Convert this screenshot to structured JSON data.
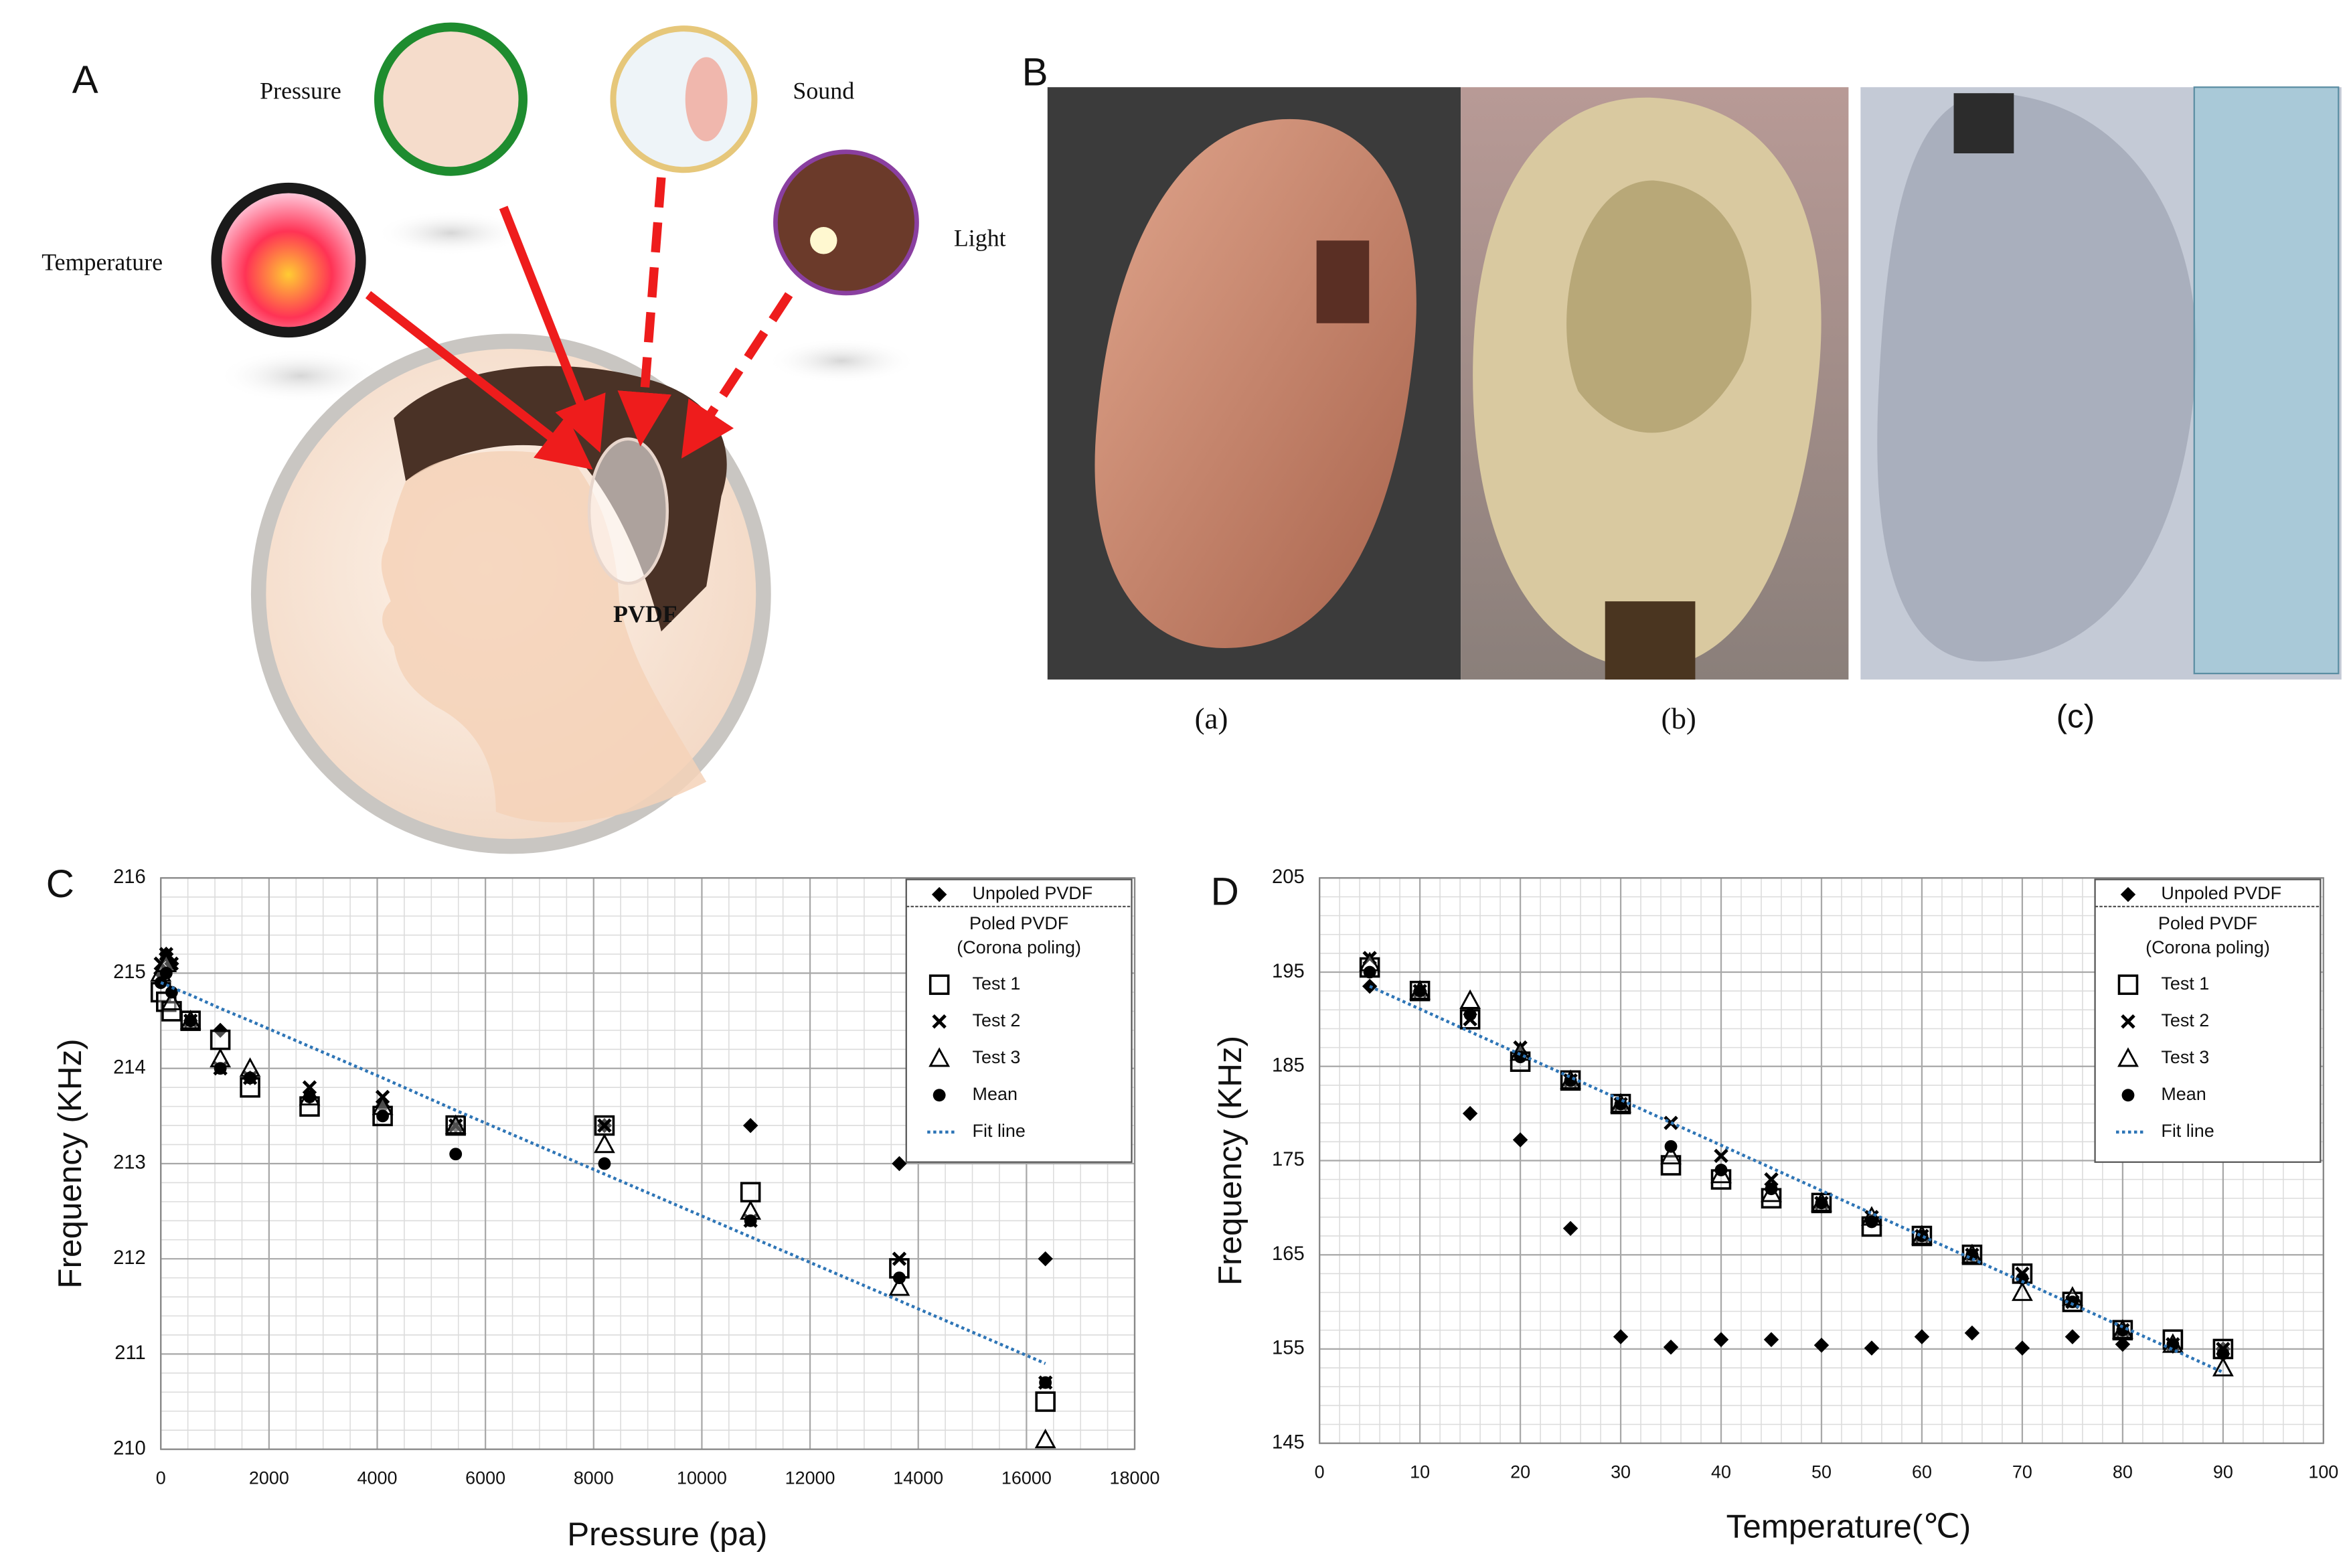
{
  "figure": {
    "panel_a": {
      "label": "A",
      "pressure": "Pressure",
      "sound": "Sound",
      "temperature": "Temperature",
      "light": "Light",
      "pvdf": "PVDF"
    },
    "panel_b": {
      "label": "B",
      "captions": [
        "(a)",
        "(b)",
        "(c)"
      ]
    }
  },
  "chart_data": [
    {
      "panel_label": "C",
      "type": "scatter",
      "x_label": "Pressure (pa)",
      "y_label": "Frequency (KHz)",
      "x": [
        0,
        100,
        200,
        550,
        1100,
        1650,
        2750,
        4100,
        5450,
        8200,
        10900,
        13650,
        16350
      ],
      "xlim": [
        0,
        18000
      ],
      "xticks": [
        0,
        2000,
        4000,
        6000,
        8000,
        10000,
        12000,
        14000,
        16000,
        18000
      ],
      "ylim": [
        210,
        216
      ],
      "yticks": [
        210,
        211,
        212,
        213,
        214,
        215,
        216
      ],
      "grid": true,
      "minor_divisions": {
        "x": 4,
        "y": 5
      },
      "legend_position": "upper right",
      "legend_group_title": [
        "Poled PVDF",
        "(Corona poling)"
      ],
      "series": [
        {
          "name": "Unpoled PVDF",
          "marker": "diamond",
          "color": "#000000",
          "values": [
            215.0,
            215.2,
            215.1,
            214.5,
            214.4,
            213.9,
            213.7,
            213.6,
            213.4,
            213.4,
            213.4,
            213.0,
            212.0
          ]
        },
        {
          "name": "Test 1",
          "marker": "square",
          "color": "#000000",
          "values": [
            214.8,
            214.7,
            214.6,
            214.5,
            214.3,
            213.8,
            213.6,
            213.5,
            213.4,
            213.4,
            212.7,
            211.9,
            210.5
          ]
        },
        {
          "name": "Test 2",
          "marker": "x",
          "color": "#000000",
          "values": [
            215.1,
            215.2,
            215.1,
            214.5,
            214.0,
            213.9,
            213.8,
            213.7,
            213.4,
            213.4,
            212.4,
            212.0,
            210.7
          ]
        },
        {
          "name": "Test 3",
          "marker": "triangle",
          "color": "#000000",
          "values": [
            215.0,
            215.1,
            214.7,
            214.5,
            214.1,
            214.0,
            213.7,
            213.6,
            213.4,
            213.2,
            212.5,
            211.7,
            210.1
          ]
        },
        {
          "name": "Mean",
          "marker": "circle",
          "color": "#000000",
          "values": [
            214.9,
            215.0,
            214.8,
            214.5,
            214.0,
            213.9,
            213.7,
            213.5,
            213.1,
            213.0,
            212.4,
            211.8,
            210.7
          ]
        },
        {
          "name": "Fit line",
          "marker": "none",
          "line_style": "dotted",
          "color": "#2e75b6",
          "values": [
            214.9,
            214.88,
            214.85,
            214.77,
            214.63,
            214.5,
            214.23,
            213.9,
            213.56,
            212.89,
            212.23,
            211.56,
            210.9
          ]
        }
      ]
    },
    {
      "panel_label": "D",
      "type": "scatter",
      "x_label": "Temperature(℃)",
      "y_label": "Frequency (KHz)",
      "x": [
        5,
        10,
        15,
        20,
        25,
        30,
        35,
        40,
        45,
        50,
        55,
        60,
        65,
        70,
        75,
        80,
        85,
        90
      ],
      "xlim": [
        0,
        100
      ],
      "xticks": [
        0,
        10,
        20,
        30,
        40,
        50,
        60,
        70,
        80,
        90,
        100
      ],
      "ylim": [
        145,
        205
      ],
      "yticks": [
        145,
        155,
        165,
        175,
        185,
        195,
        205
      ],
      "grid": true,
      "minor_divisions": {
        "x": 5,
        "y": 5
      },
      "legend_position": "upper right",
      "legend_group_title": [
        "Poled PVDF",
        "(Corona poling)"
      ],
      "series": [
        {
          "name": "Unpoled PVDF",
          "marker": "diamond",
          "color": "#000000",
          "values": [
            193.5,
            193,
            180,
            177.2,
            167.8,
            156.3,
            155.2,
            156,
            156,
            155.4,
            155.1,
            156.3,
            156.7,
            155.1,
            156.3,
            155.5,
            155.3,
            155
          ]
        },
        {
          "name": "Test 1",
          "marker": "square",
          "color": "#000000",
          "values": [
            195.5,
            193,
            190,
            185.5,
            183.5,
            181,
            174.5,
            173,
            171,
            170.5,
            168,
            167,
            165,
            163,
            160,
            157,
            156,
            155
          ]
        },
        {
          "name": "Test 2",
          "marker": "x",
          "color": "#000000",
          "values": [
            196.5,
            193,
            190,
            187,
            183.5,
            181,
            179,
            175.5,
            173,
            170.5,
            169,
            167,
            165,
            163,
            160,
            157,
            155.5,
            155
          ]
        },
        {
          "name": "Test 3",
          "marker": "triangle",
          "color": "#000000",
          "values": [
            196,
            193,
            192,
            186.5,
            183.5,
            181,
            175.5,
            173.5,
            171.5,
            170.5,
            169,
            167,
            165,
            161,
            160.5,
            157,
            155.5,
            153
          ]
        },
        {
          "name": "Mean",
          "marker": "circle",
          "color": "#000000",
          "values": [
            195,
            193,
            190.5,
            186,
            183.5,
            181,
            176.5,
            174,
            172,
            170.5,
            168.5,
            167,
            165,
            162.5,
            160,
            157,
            155.5,
            154.5
          ]
        },
        {
          "name": "Fit line",
          "marker": "none",
          "line_style": "dotted",
          "color": "#2e75b6",
          "values": [
            193.5,
            191.09,
            188.68,
            186.27,
            183.86,
            181.45,
            179.04,
            176.63,
            174.22,
            171.81,
            169.4,
            166.99,
            164.58,
            162.17,
            159.76,
            157.35,
            154.94,
            152.53
          ]
        }
      ]
    }
  ]
}
